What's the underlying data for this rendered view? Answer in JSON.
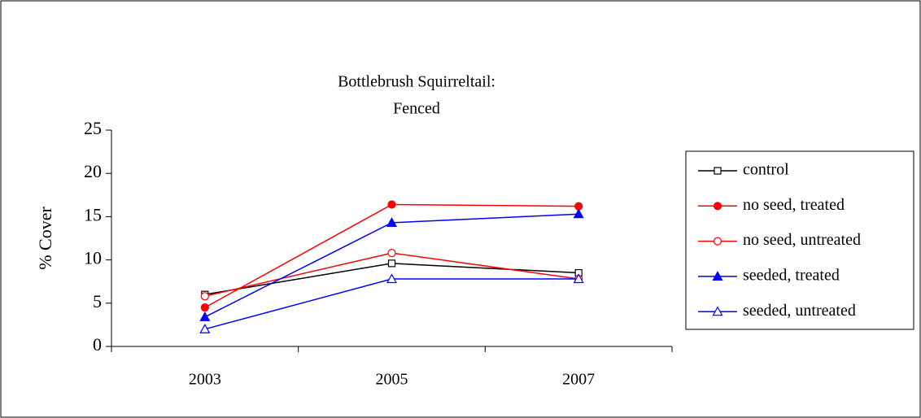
{
  "chart_data": {
    "type": "line",
    "title": [
      "Bottlebrush Squirreltail:",
      "Fenced"
    ],
    "y_label": "% Cover",
    "categories": [
      "2003",
      "2005",
      "2007"
    ],
    "series": [
      {
        "name": "control",
        "color": "#000000",
        "marker": "square",
        "filled": false,
        "values": [
          6.0,
          9.6,
          8.5
        ]
      },
      {
        "name": "no seed, treated",
        "color": "#ff0000",
        "marker": "circle",
        "filled": true,
        "values": [
          4.5,
          16.4,
          16.2
        ]
      },
      {
        "name": "no seed, untreated",
        "color": "#ff0000",
        "marker": "circle",
        "filled": false,
        "values": [
          5.8,
          10.8,
          7.8
        ]
      },
      {
        "name": "seeded, treated",
        "color": "#0000ff",
        "marker": "triangle",
        "filled": true,
        "values": [
          3.4,
          14.3,
          15.3
        ]
      },
      {
        "name": "seeded, untreated",
        "color": "#0000ff",
        "marker": "triangle",
        "filled": false,
        "values": [
          2.0,
          7.8,
          7.8
        ]
      }
    ],
    "ylim": [
      0,
      25
    ],
    "yticks": [
      0,
      5,
      10,
      15,
      20,
      25
    ],
    "grid": false,
    "legend": "right"
  }
}
